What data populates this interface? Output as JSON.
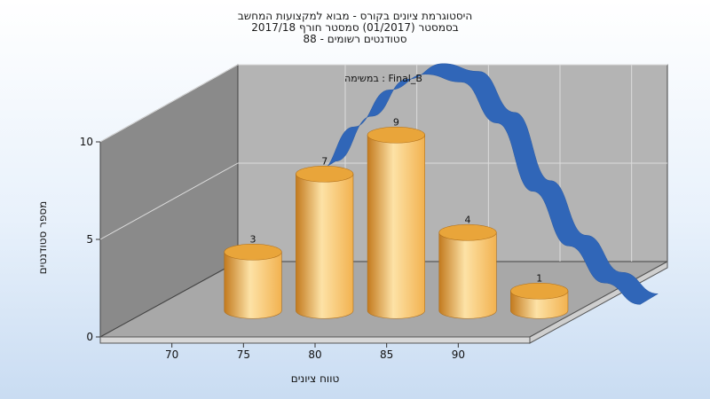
{
  "chart_data": {
    "type": "bar",
    "title_lines": [
      "היסטוגרמת ציונים בקורס - מבוא למקצועות המחשב",
      "בסמסטר (01/2017) סמסטר חורף 2017/18",
      "סטודנטים רשומים - 88"
    ],
    "annotation": "במשימה : Final_B",
    "xlabel": "טווח ציונים",
    "ylabel": "מספר סטודנטים",
    "x_ticks": [
      "70",
      "75",
      "80",
      "85",
      "90"
    ],
    "y_ticks": [
      "0",
      "5",
      "10"
    ],
    "ylim": [
      0,
      12
    ],
    "bars": [
      {
        "x": 70,
        "value": 3,
        "label": "3"
      },
      {
        "x": 75,
        "value": 7,
        "label": "7"
      },
      {
        "x": 80,
        "value": 9,
        "label": "9"
      },
      {
        "x": 85,
        "value": 4,
        "label": "4"
      },
      {
        "x": 90,
        "value": 1,
        "label": "1"
      }
    ],
    "curve": [
      {
        "x": 76.5,
        "y": 7.0
      },
      {
        "x": 79,
        "y": 9.3
      },
      {
        "x": 81.5,
        "y": 11.2
      },
      {
        "x": 84,
        "y": 12.0
      },
      {
        "x": 86.5,
        "y": 11.6
      },
      {
        "x": 89,
        "y": 9.5
      },
      {
        "x": 91.5,
        "y": 6.0
      },
      {
        "x": 94,
        "y": 3.2
      },
      {
        "x": 96.5,
        "y": 1.3
      },
      {
        "x": 99,
        "y": 0.2
      }
    ],
    "grid": true,
    "colors": {
      "bar_light": "#fde2a6",
      "bar_mid": "#f2b250",
      "bar_dark": "#c37a1e",
      "bar_top": "#e9a53a",
      "curve": "#3066b8",
      "back_wall": "#b4b4b4",
      "side_wall": "#8a8a8a",
      "floor": "#a8a8a8",
      "grid": "#dcdcdc"
    }
  }
}
